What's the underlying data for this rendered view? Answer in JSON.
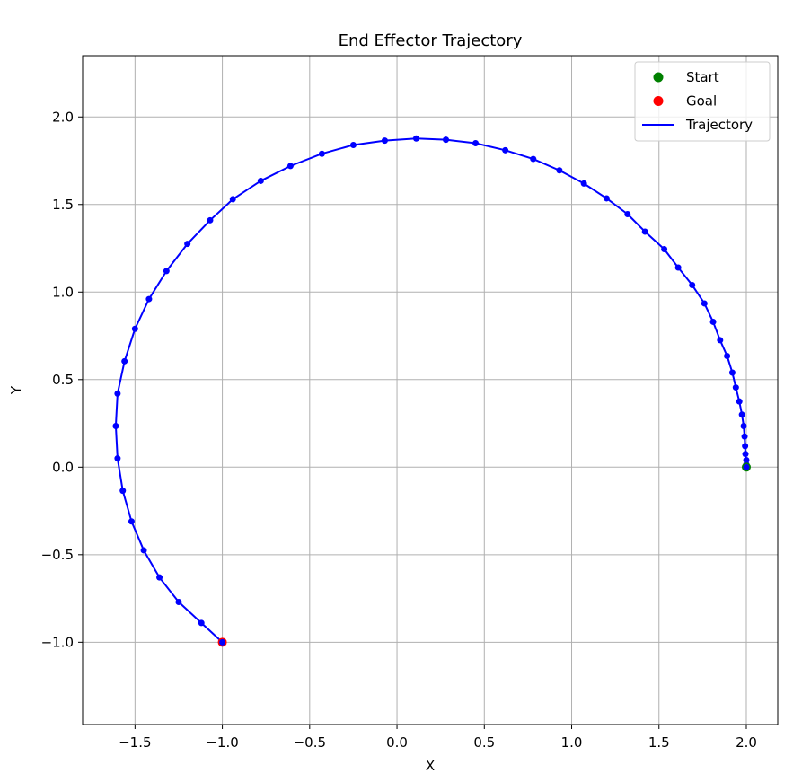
{
  "chart_data": {
    "type": "line",
    "title": "End Effector Trajectory",
    "xlabel": "X",
    "ylabel": "Y",
    "xlim": [
      -1.8,
      2.18
    ],
    "ylim": [
      -1.47,
      2.35
    ],
    "x_ticks": [
      -1.5,
      -1.0,
      -0.5,
      0.0,
      0.5,
      1.0,
      1.5,
      2.0
    ],
    "x_tick_labels": [
      "−1.5",
      "−1.0",
      "−0.5",
      "0.0",
      "0.5",
      "1.0",
      "1.5",
      "2.0"
    ],
    "y_ticks": [
      -1.0,
      -0.5,
      0.0,
      0.5,
      1.0,
      1.5,
      2.0
    ],
    "y_tick_labels": [
      "−1.0",
      "−0.5",
      "0.0",
      "0.5",
      "1.0",
      "1.5",
      "2.0"
    ],
    "grid": true,
    "legend_position": "top-right",
    "series": [
      {
        "name": "Trajectory",
        "color": "#0000ff",
        "marker": "circle",
        "points": [
          [
            2.0,
            0.0
          ],
          [
            2.0,
            0.015
          ],
          [
            2.0,
            0.04
          ],
          [
            1.995,
            0.075
          ],
          [
            1.993,
            0.12
          ],
          [
            1.99,
            0.175
          ],
          [
            1.985,
            0.235
          ],
          [
            1.975,
            0.3
          ],
          [
            1.96,
            0.375
          ],
          [
            1.94,
            0.455
          ],
          [
            1.92,
            0.54
          ],
          [
            1.89,
            0.635
          ],
          [
            1.85,
            0.725
          ],
          [
            1.81,
            0.83
          ],
          [
            1.76,
            0.935
          ],
          [
            1.69,
            1.04
          ],
          [
            1.61,
            1.14
          ],
          [
            1.53,
            1.245
          ],
          [
            1.42,
            1.345
          ],
          [
            1.32,
            1.445
          ],
          [
            1.2,
            1.535
          ],
          [
            1.07,
            1.62
          ],
          [
            0.93,
            1.695
          ],
          [
            0.78,
            1.76
          ],
          [
            0.62,
            1.81
          ],
          [
            0.45,
            1.85
          ],
          [
            0.28,
            1.87
          ],
          [
            0.11,
            1.877
          ],
          [
            -0.07,
            1.865
          ],
          [
            -0.25,
            1.84
          ],
          [
            -0.43,
            1.79
          ],
          [
            -0.61,
            1.72
          ],
          [
            -0.78,
            1.635
          ],
          [
            -0.94,
            1.53
          ],
          [
            -1.07,
            1.41
          ],
          [
            -1.2,
            1.275
          ],
          [
            -1.32,
            1.12
          ],
          [
            -1.42,
            0.96
          ],
          [
            -1.5,
            0.79
          ],
          [
            -1.56,
            0.605
          ],
          [
            -1.6,
            0.42
          ],
          [
            -1.61,
            0.235
          ],
          [
            -1.6,
            0.05
          ],
          [
            -1.57,
            -0.135
          ],
          [
            -1.52,
            -0.31
          ],
          [
            -1.45,
            -0.475
          ],
          [
            -1.36,
            -0.63
          ],
          [
            -1.25,
            -0.77
          ],
          [
            -1.12,
            -0.89
          ],
          [
            -1.0,
            -1.0
          ]
        ]
      }
    ],
    "markers": [
      {
        "name": "Start",
        "color": "#008000",
        "x": 2.0,
        "y": 0.0
      },
      {
        "name": "Goal",
        "color": "#ff0000",
        "x": -1.0,
        "y": -1.0
      }
    ],
    "legend": [
      {
        "label": "Start",
        "kind": "dot",
        "color": "#008000"
      },
      {
        "label": "Goal",
        "kind": "dot",
        "color": "#ff0000"
      },
      {
        "label": "Trajectory",
        "kind": "line",
        "color": "#0000ff"
      }
    ]
  }
}
